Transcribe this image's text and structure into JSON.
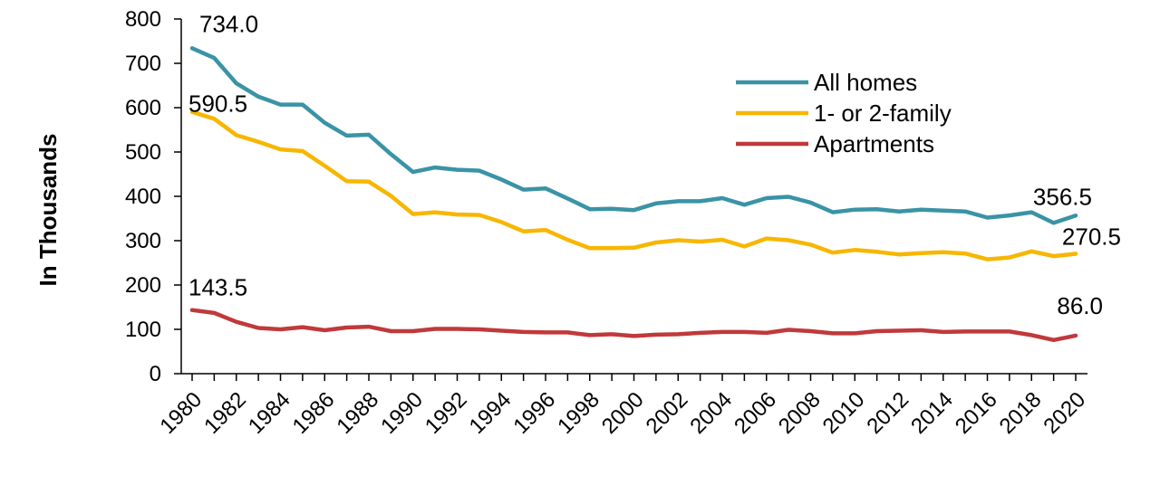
{
  "chart_data": {
    "type": "line",
    "title": "",
    "xlabel": "",
    "ylabel": "In Thousands",
    "ylim": [
      0,
      800
    ],
    "yticks": [
      0,
      100,
      200,
      300,
      400,
      500,
      600,
      700,
      800
    ],
    "xlim": [
      1980,
      2020
    ],
    "xticks": [
      "1980",
      "1982",
      "1984",
      "1986",
      "1988",
      "1990",
      "1992",
      "1994",
      "1996",
      "1998",
      "2000",
      "2002",
      "2004",
      "2006",
      "2008",
      "2010",
      "2012",
      "2014",
      "2016",
      "2018",
      "2020"
    ],
    "grid": false,
    "legend_position": "top-right",
    "x": [
      1980,
      1981,
      1982,
      1983,
      1984,
      1985,
      1986,
      1987,
      1988,
      1989,
      1990,
      1991,
      1992,
      1993,
      1994,
      1995,
      1996,
      1997,
      1998,
      1999,
      2000,
      2001,
      2002,
      2003,
      2004,
      2005,
      2006,
      2007,
      2008,
      2009,
      2010,
      2011,
      2012,
      2013,
      2014,
      2015,
      2016,
      2017,
      2018,
      2019,
      2020
    ],
    "series": [
      {
        "name": "All homes",
        "color": "#3a93a6",
        "values": [
          734.0,
          712,
          655,
          625,
          607,
          607,
          566,
          537,
          539,
          495,
          455,
          465,
          460,
          458,
          438,
          415,
          418,
          395,
          371,
          372,
          369,
          384,
          389,
          389,
          396,
          381,
          396,
          399,
          386,
          364,
          370,
          371,
          366,
          370,
          368,
          366,
          352,
          357,
          364,
          340,
          356.5
        ]
      },
      {
        "name": "1- or 2-family",
        "color": "#f7b600",
        "values": [
          590.5,
          575,
          538,
          523,
          506,
          502,
          469,
          434,
          433,
          401,
          360,
          364,
          359,
          358,
          342,
          321,
          324,
          302,
          283,
          283,
          284,
          296,
          301,
          298,
          302,
          287,
          305,
          301,
          291,
          273,
          279,
          275,
          269,
          272,
          274,
          271,
          258,
          262,
          276,
          265,
          270.5
        ]
      },
      {
        "name": "Apartments",
        "color": "#c0393b",
        "values": [
          143.5,
          137,
          117,
          103,
          100,
          105,
          98,
          104,
          106,
          96,
          96,
          101,
          101,
          100,
          97,
          94,
          93,
          93,
          87,
          89,
          85,
          88,
          89,
          92,
          94,
          94,
          92,
          99,
          96,
          91,
          91,
          96,
          97,
          98,
          94,
          95,
          95,
          95,
          87,
          76,
          86.0
        ]
      }
    ],
    "annotations": [
      {
        "series": 0,
        "point": "start",
        "text": "734.0"
      },
      {
        "series": 1,
        "point": "start",
        "text": "590.5"
      },
      {
        "series": 2,
        "point": "start",
        "text": "143.5"
      },
      {
        "series": 0,
        "point": "end",
        "text": "356.5"
      },
      {
        "series": 1,
        "point": "end",
        "text": "270.5"
      },
      {
        "series": 2,
        "point": "end",
        "text": "86.0"
      }
    ]
  }
}
